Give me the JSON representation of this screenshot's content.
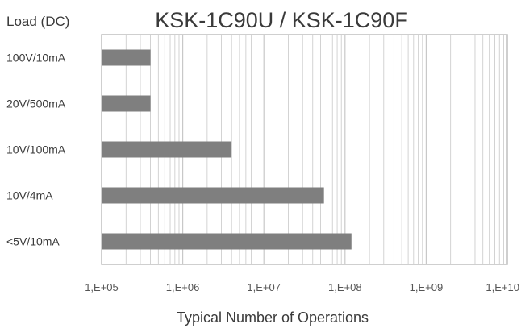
{
  "chart_data": {
    "type": "bar",
    "orientation": "horizontal",
    "title": "KSK-1C90U / KSK-1C90F",
    "ylabel": "Load (DC)",
    "xlabel": "Typical Number of Operations",
    "xscale": "log",
    "xlim": [
      100000,
      10000000000
    ],
    "xticks": [
      "1,E+05",
      "1,E+06",
      "1,E+07",
      "1,E+08",
      "1,E+09",
      "1,E+10"
    ],
    "categories": [
      "100V/10mA",
      "20V/500mA",
      "10V/100mA",
      "10V/4mA",
      "<5V/10mA"
    ],
    "values": [
      400000,
      400000,
      4000000,
      55000000,
      120000000
    ],
    "grid": true,
    "colors": {
      "bar": "#7f7f7f",
      "grid": "#c8c8c8",
      "axis": "#bfbfbf",
      "text": "#3a3a3a"
    }
  }
}
